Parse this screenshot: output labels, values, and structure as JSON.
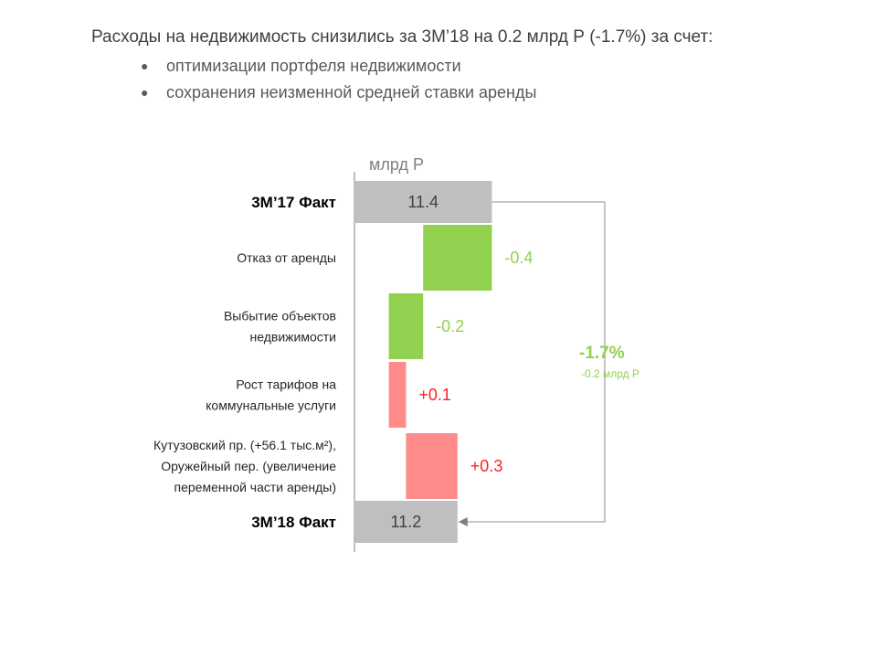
{
  "header": {
    "title": "Расходы на недвижимость снизились за 3M’18 на 0.2 млрд Р (-1.7%) за счет:",
    "bullets": [
      "оптимизации портфеля недвижимости",
      "сохранения неизменной средней ставки аренды"
    ]
  },
  "chart_data": {
    "type": "bar",
    "subtype": "waterfall",
    "orientation": "horizontal",
    "unit_label": "млрд Р",
    "categories": [
      "3M’17 Факт",
      "Отказ от аренды",
      "Выбытие объектов недвижимости",
      "Рост тарифов на коммунальные услуги",
      "Кутузовский пр. (+56.1 тыс.м2), Оружейный пер. (увеличение переменной части аренды)",
      "3M’18 Факт"
    ],
    "category_lines": [
      [
        "3M’17 Факт"
      ],
      [
        "Отказ от аренды"
      ],
      [
        "Выбытие объектов",
        "недвижимости"
      ],
      [
        "Рост тарифов на",
        "коммунальные услуги"
      ],
      [
        "Кутузовский пр. (+56.1 тыс.м²),",
        "Оружейный пер. (увеличение",
        "переменной части аренды)"
      ],
      [
        "3M’18 Факт"
      ]
    ],
    "category_bold": [
      true,
      false,
      false,
      false,
      false,
      true
    ],
    "values": [
      11.4,
      -0.4,
      -0.2,
      0.1,
      0.3,
      11.2
    ],
    "kinds": [
      "total",
      "delta",
      "delta",
      "delta",
      "delta",
      "total"
    ],
    "value_labels": [
      "11.4",
      "-0.4",
      "-0.2",
      "+0.1",
      "+0.3",
      "11.2"
    ],
    "colors": {
      "total": "#bfbfbf",
      "decrease": "#92d050",
      "increase": "#ff8b8b",
      "decrease_text": "#92d050",
      "increase_text": "#ff2020",
      "total_text": "#404040"
    },
    "annotation": {
      "percent": "-1.7%",
      "absolute": "-0.2 млрд Р",
      "color": "#92d050"
    }
  }
}
